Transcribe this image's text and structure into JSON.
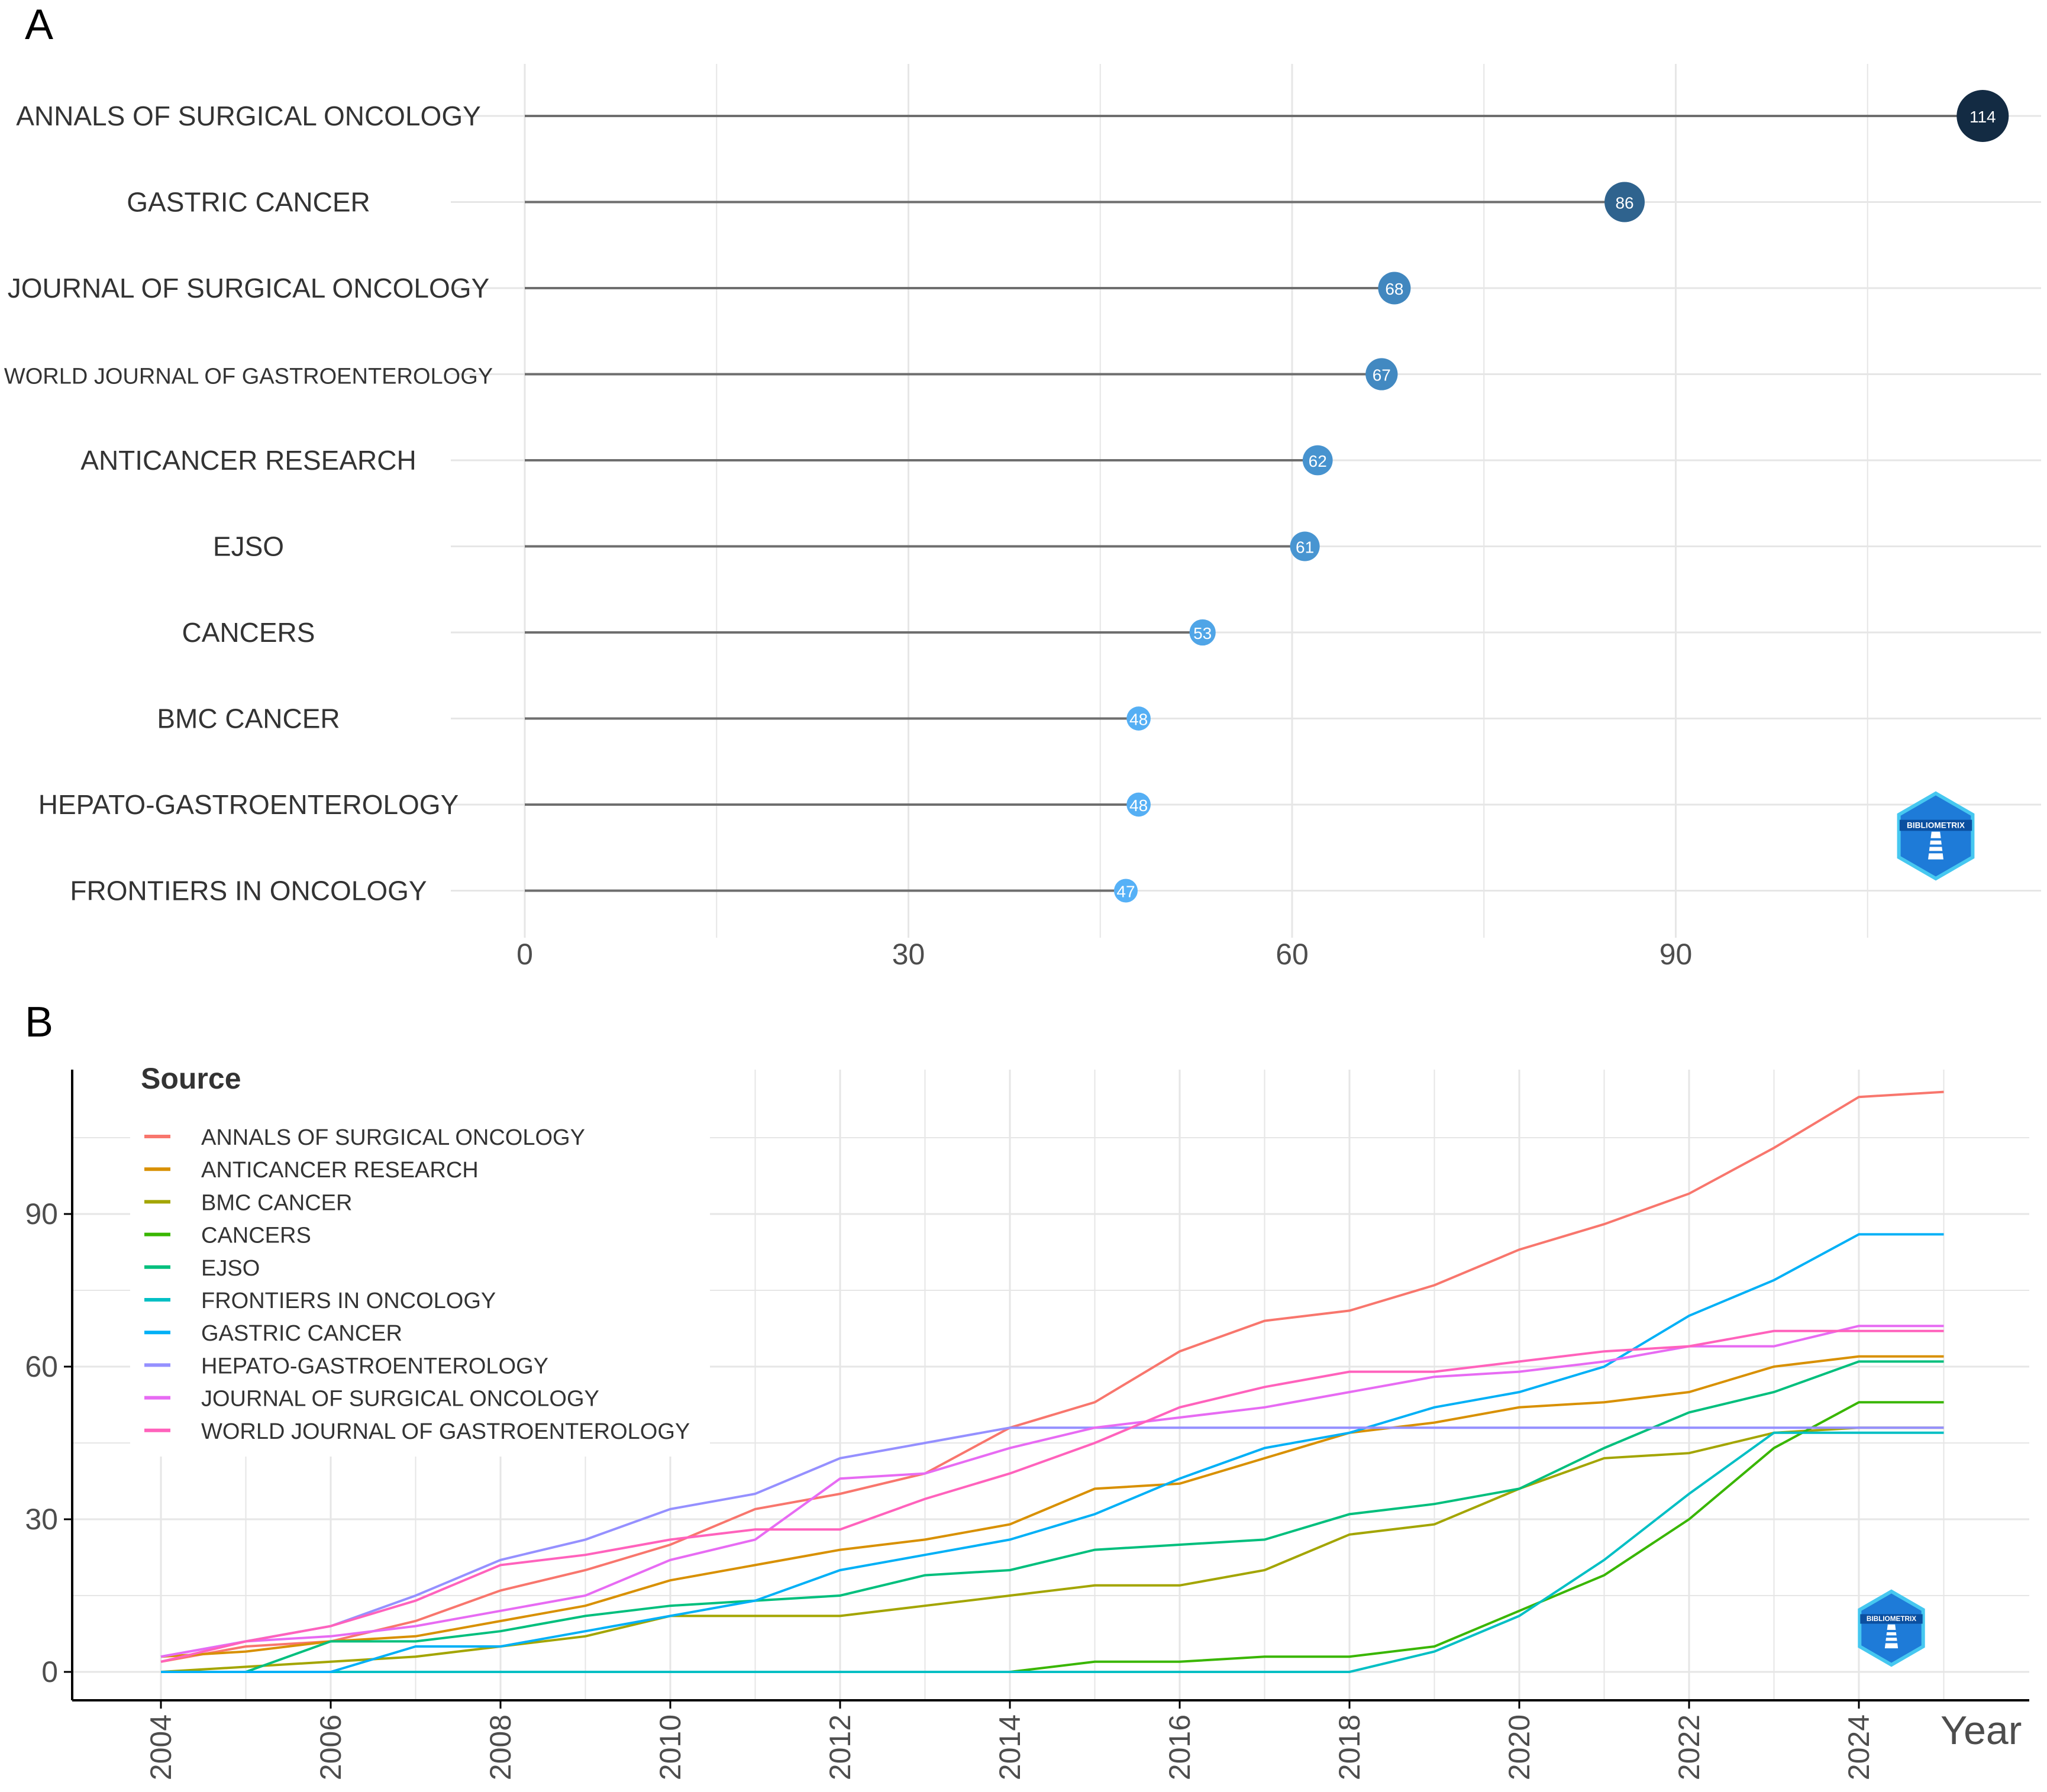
{
  "colors": {
    "stem": "#6e6e6e",
    "grid": "#e6e6e6",
    "axis": "#000000",
    "text": "#333333",
    "dot_scale": [
      "#56b1f7",
      "#132b43"
    ]
  },
  "chart_data": [
    {
      "panel_label": "A",
      "type": "lollipop",
      "title": "",
      "xlabel": "",
      "ylabel": "",
      "xlim": [
        0,
        117
      ],
      "xticks": [
        "0",
        "30",
        "60",
        "90"
      ],
      "categories": [
        "ANNALS OF SURGICAL ONCOLOGY",
        "GASTRIC CANCER",
        "JOURNAL OF SURGICAL ONCOLOGY",
        "WORLD JOURNAL OF GASTROENTEROLOGY",
        "ANTICANCER RESEARCH",
        "EJSO",
        "CANCERS",
        "BMC CANCER",
        "HEPATO-GASTROENTEROLOGY",
        "FRONTIERS IN ONCOLOGY"
      ],
      "values": [
        114,
        86,
        68,
        67,
        62,
        61,
        53,
        48,
        48,
        47
      ],
      "value_labels": [
        "114",
        "86",
        "68",
        "67",
        "62",
        "61",
        "53",
        "48",
        "48",
        "47"
      ],
      "logo_text": "BIBLIOMETRIX"
    },
    {
      "panel_label": "B",
      "type": "line",
      "title": "",
      "xlabel": "Year",
      "ylabel": "",
      "xlim": [
        2004,
        2025
      ],
      "ylim": [
        -3,
        118
      ],
      "x": [
        2004,
        2005,
        2006,
        2007,
        2008,
        2009,
        2010,
        2011,
        2012,
        2013,
        2014,
        2015,
        2016,
        2017,
        2018,
        2019,
        2020,
        2021,
        2022,
        2023,
        2024,
        2025
      ],
      "xticks": [
        "2004",
        "2006",
        "2008",
        "2010",
        "2012",
        "2014",
        "2016",
        "2018",
        "2020",
        "2022",
        "2024"
      ],
      "yticks": [
        "0",
        "30",
        "60",
        "90"
      ],
      "legend_title": "Source",
      "legend_position": "top-left",
      "logo_text": "BIBLIOMETRIX",
      "series": [
        {
          "name": "ANNALS OF SURGICAL ONCOLOGY",
          "color": "#f8766d",
          "values": [
            2,
            5,
            6,
            10,
            16,
            20,
            25,
            32,
            35,
            39,
            48,
            53,
            63,
            69,
            71,
            76,
            83,
            88,
            94,
            103,
            113,
            114
          ]
        },
        {
          "name": "ANTICANCER RESEARCH",
          "color": "#d89000",
          "values": [
            3,
            4,
            6,
            7,
            10,
            13,
            18,
            21,
            24,
            26,
            29,
            36,
            37,
            42,
            47,
            49,
            52,
            53,
            55,
            60,
            62,
            62
          ]
        },
        {
          "name": "BMC CANCER",
          "color": "#a3a500",
          "values": [
            0,
            1,
            2,
            3,
            5,
            7,
            11,
            11,
            11,
            13,
            15,
            17,
            17,
            20,
            27,
            29,
            36,
            42,
            43,
            47,
            48,
            48
          ]
        },
        {
          "name": "CANCERS",
          "color": "#39b600",
          "values": [
            0,
            0,
            0,
            0,
            0,
            0,
            0,
            0,
            0,
            0,
            0,
            2,
            2,
            3,
            3,
            5,
            12,
            19,
            30,
            44,
            53,
            53
          ]
        },
        {
          "name": "EJSO",
          "color": "#00bf7d",
          "values": [
            0,
            0,
            6,
            6,
            8,
            11,
            13,
            14,
            15,
            19,
            20,
            24,
            25,
            26,
            31,
            33,
            36,
            44,
            51,
            55,
            61,
            61
          ]
        },
        {
          "name": "FRONTIERS IN ONCOLOGY",
          "color": "#00bfc4",
          "values": [
            0,
            0,
            0,
            0,
            0,
            0,
            0,
            0,
            0,
            0,
            0,
            0,
            0,
            0,
            0,
            4,
            11,
            22,
            35,
            47,
            47,
            47
          ]
        },
        {
          "name": "GASTRIC CANCER",
          "color": "#00b0f6",
          "values": [
            0,
            0,
            0,
            5,
            5,
            8,
            11,
            14,
            20,
            23,
            26,
            31,
            38,
            44,
            47,
            52,
            55,
            60,
            70,
            77,
            86,
            86
          ]
        },
        {
          "name": "HEPATO-GASTROENTEROLOGY",
          "color": "#9590ff",
          "values": [
            3,
            6,
            9,
            15,
            22,
            26,
            32,
            35,
            42,
            45,
            48,
            48,
            48,
            48,
            48,
            48,
            48,
            48,
            48,
            48,
            48,
            48
          ]
        },
        {
          "name": "JOURNAL OF SURGICAL ONCOLOGY",
          "color": "#e76bf3",
          "values": [
            3,
            6,
            7,
            9,
            12,
            15,
            22,
            26,
            38,
            39,
            44,
            48,
            50,
            52,
            55,
            58,
            59,
            61,
            64,
            64,
            68,
            68
          ]
        },
        {
          "name": "WORLD JOURNAL OF GASTROENTEROLOGY",
          "color": "#ff62bc",
          "values": [
            2,
            6,
            9,
            14,
            21,
            23,
            26,
            28,
            28,
            34,
            39,
            45,
            52,
            56,
            59,
            59,
            61,
            63,
            64,
            67,
            67,
            67
          ]
        }
      ]
    }
  ]
}
